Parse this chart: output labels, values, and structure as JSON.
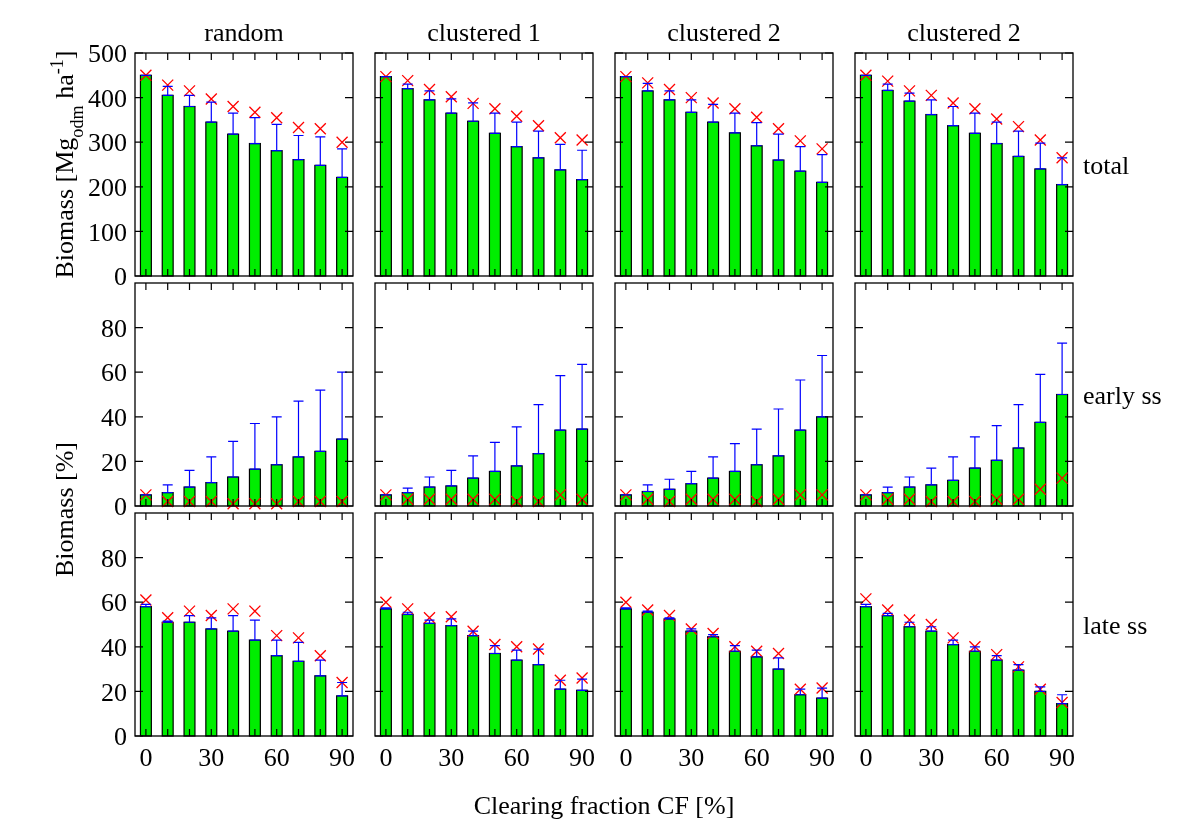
{
  "chart_data": [
    {
      "type": "bar",
      "title": "random",
      "ylabel": "Biomass [Mg$_{odm}$ ha$^{-1}$]",
      "x": [
        0,
        10,
        20,
        30,
        40,
        50,
        60,
        70,
        80,
        90
      ],
      "xlim": [
        -5,
        95
      ],
      "xticks": [
        0,
        {
          "value": 10,
          "label": null
        },
        {
          "value": 20,
          "label": null
        },
        30,
        {
          "value": 40,
          "label": null
        },
        {
          "value": 50,
          "label": null
        },
        60,
        {
          "value": 70,
          "label": null
        },
        {
          "value": 80,
          "label": null
        },
        90
      ],
      "ylim": [
        0,
        500
      ],
      "yticks": [
        0,
        100,
        200,
        300,
        400,
        500
      ],
      "tick_labels": "y",
      "marker": "cross",
      "series": [
        {
          "type": "bar",
          "color": "#00ee00",
          "values": [
            450,
            405,
            380,
            345,
            318,
            297,
            281,
            261,
            248,
            221
          ],
          "errors": [
            [
              450,
              450
            ],
            [
              405,
              425
            ],
            [
              380,
              405
            ],
            [
              345,
              390
            ],
            [
              318,
              365
            ],
            [
              297,
              355
            ],
            [
              281,
              340
            ],
            [
              261,
              315
            ],
            [
              248,
              312
            ],
            [
              221,
              285
            ]
          ]
        },
        {
          "type": "scatter",
          "color": "#ff0000",
          "values": [
            450,
            428,
            415,
            397,
            380,
            367,
            355,
            333,
            330,
            300
          ]
        }
      ]
    },
    {
      "type": "bar",
      "title": "clustered 1",
      "x": [
        0,
        10,
        20,
        30,
        40,
        50,
        60,
        70,
        80,
        90
      ],
      "xlim": [
        -5,
        95
      ],
      "xticks": [
        0,
        {
          "value": 10,
          "label": null
        },
        {
          "value": 20,
          "label": null
        },
        30,
        {
          "value": 40,
          "label": null
        },
        {
          "value": 50,
          "label": null
        },
        60,
        {
          "value": 70,
          "label": null
        },
        {
          "value": 80,
          "label": null
        },
        90
      ],
      "ylim": [
        0,
        500
      ],
      "yticks": [
        0,
        100,
        200,
        300,
        400,
        500
      ],
      "tick_labels": false,
      "marker": "cross",
      "series": [
        {
          "type": "bar",
          "color": "#00ee00",
          "values": [
            447,
            420,
            395,
            365,
            347,
            320,
            290,
            265,
            238,
            216
          ],
          "errors": [
            [
              447,
              447
            ],
            [
              420,
              430
            ],
            [
              395,
              415
            ],
            [
              365,
              397
            ],
            [
              347,
              388
            ],
            [
              320,
              365
            ],
            [
              290,
              345
            ],
            [
              265,
              325
            ],
            [
              238,
              295
            ],
            [
              216,
              282
            ]
          ]
        },
        {
          "type": "scatter",
          "color": "#ff0000",
          "values": [
            447,
            438,
            418,
            402,
            387,
            375,
            358,
            337,
            310,
            305
          ]
        }
      ]
    },
    {
      "type": "bar",
      "title": "clustered 2",
      "x": [
        0,
        10,
        20,
        30,
        40,
        50,
        60,
        70,
        80,
        90
      ],
      "xlim": [
        -5,
        95
      ],
      "xticks": [
        0,
        {
          "value": 10,
          "label": null
        },
        {
          "value": 20,
          "label": null
        },
        30,
        {
          "value": 40,
          "label": null
        },
        {
          "value": 50,
          "label": null
        },
        60,
        {
          "value": 70,
          "label": null
        },
        {
          "value": 80,
          "label": null
        },
        90
      ],
      "ylim": [
        0,
        500
      ],
      "yticks": [
        0,
        100,
        200,
        300,
        400,
        500
      ],
      "tick_labels": false,
      "marker": "cross",
      "series": [
        {
          "type": "bar",
          "color": "#00ee00",
          "values": [
            447,
            415,
            395,
            367,
            345,
            321,
            292,
            260,
            235,
            210
          ],
          "errors": [
            [
              447,
              447
            ],
            [
              415,
              432
            ],
            [
              395,
              415
            ],
            [
              367,
              395
            ],
            [
              345,
              385
            ],
            [
              321,
              365
            ],
            [
              292,
              344
            ],
            [
              260,
              318
            ],
            [
              235,
              290
            ],
            [
              210,
              272
            ]
          ]
        },
        {
          "type": "scatter",
          "color": "#ff0000",
          "values": [
            447,
            433,
            418,
            400,
            388,
            375,
            356,
            330,
            303,
            285
          ]
        }
      ]
    },
    {
      "type": "bar",
      "title": "clustered 2",
      "y2label": "total",
      "x": [
        0,
        10,
        20,
        30,
        40,
        50,
        60,
        70,
        80,
        90
      ],
      "xlim": [
        -5,
        95
      ],
      "xticks": [
        0,
        {
          "value": 10,
          "label": null
        },
        {
          "value": 20,
          "label": null
        },
        30,
        {
          "value": 40,
          "label": null
        },
        {
          "value": 50,
          "label": null
        },
        60,
        {
          "value": 70,
          "label": null
        },
        {
          "value": 80,
          "label": null
        },
        90
      ],
      "ylim": [
        0,
        500
      ],
      "yticks": [
        0,
        100,
        200,
        300,
        400,
        500
      ],
      "tick_labels": false,
      "marker": "cross",
      "series": [
        {
          "type": "bar",
          "color": "#00ee00",
          "values": [
            450,
            416,
            392,
            362,
            337,
            320,
            297,
            268,
            240,
            205
          ],
          "errors": [
            [
              450,
              450
            ],
            [
              416,
              430
            ],
            [
              392,
              410
            ],
            [
              362,
              395
            ],
            [
              337,
              380
            ],
            [
              320,
              365
            ],
            [
              297,
              345
            ],
            [
              268,
              325
            ],
            [
              240,
              298
            ],
            [
              205,
              265
            ]
          ]
        },
        {
          "type": "scatter",
          "color": "#ff0000",
          "values": [
            450,
            437,
            415,
            405,
            388,
            375,
            352,
            335,
            305,
            265
          ]
        }
      ]
    },
    {
      "type": "bar",
      "ylabel": "Biomass [%]",
      "x": [
        0,
        10,
        20,
        30,
        40,
        50,
        60,
        70,
        80,
        90
      ],
      "xlim": [
        -5,
        95
      ],
      "xticks": [
        0,
        {
          "value": 10,
          "label": null
        },
        {
          "value": 20,
          "label": null
        },
        30,
        {
          "value": 40,
          "label": null
        },
        {
          "value": 50,
          "label": null
        },
        60,
        {
          "value": 70,
          "label": null
        },
        {
          "value": 80,
          "label": null
        },
        90
      ],
      "ylim": [
        0,
        100
      ],
      "yticks": [
        0,
        20,
        40,
        60,
        80
      ],
      "tick_labels": "y",
      "marker": "cross",
      "series": [
        {
          "type": "bar",
          "color": "#00ee00",
          "values": [
            5,
            6,
            8.5,
            10.5,
            13,
            16.5,
            18.5,
            22,
            24.5,
            30
          ],
          "errors": [
            [
              5,
              5
            ],
            [
              6,
              9.5
            ],
            [
              8.5,
              16
            ],
            [
              10.5,
              22
            ],
            [
              13,
              29
            ],
            [
              16.5,
              37
            ],
            [
              18.5,
              40
            ],
            [
              22,
              47
            ],
            [
              24.5,
              52
            ],
            [
              30,
              60
            ]
          ]
        },
        {
          "type": "scatter",
          "color": "#ff0000",
          "values": [
            5,
            2,
            2,
            2,
            1,
            1,
            1,
            2,
            2,
            2
          ]
        }
      ]
    },
    {
      "type": "bar",
      "x": [
        0,
        10,
        20,
        30,
        40,
        50,
        60,
        70,
        80,
        90
      ],
      "xlim": [
        -5,
        95
      ],
      "xticks": [
        0,
        {
          "value": 10,
          "label": null
        },
        {
          "value": 20,
          "label": null
        },
        30,
        {
          "value": 40,
          "label": null
        },
        {
          "value": 50,
          "label": null
        },
        60,
        {
          "value": 70,
          "label": null
        },
        {
          "value": 80,
          "label": null
        },
        90
      ],
      "ylim": [
        0,
        100
      ],
      "yticks": [
        0,
        20,
        40,
        60,
        80
      ],
      "tick_labels": false,
      "marker": "cross",
      "series": [
        {
          "type": "bar",
          "color": "#00ee00",
          "values": [
            5,
            6,
            8.5,
            9,
            12.5,
            15.5,
            18,
            23.5,
            34,
            34.5
          ],
          "errors": [
            [
              5,
              5
            ],
            [
              6,
              8
            ],
            [
              8.5,
              13
            ],
            [
              9,
              16
            ],
            [
              12.5,
              22.5
            ],
            [
              15.5,
              28.5
            ],
            [
              18,
              35.5
            ],
            [
              23.5,
              45.5
            ],
            [
              34,
              58.5
            ],
            [
              34.5,
              63.5
            ]
          ]
        },
        {
          "type": "scatter",
          "color": "#ff0000",
          "values": [
            5,
            3,
            3,
            3,
            3,
            3,
            2,
            2,
            5,
            3
          ]
        }
      ]
    },
    {
      "type": "bar",
      "x": [
        0,
        10,
        20,
        30,
        40,
        50,
        60,
        70,
        80,
        90
      ],
      "xlim": [
        -5,
        95
      ],
      "xticks": [
        0,
        {
          "value": 10,
          "label": null
        },
        {
          "value": 20,
          "label": null
        },
        30,
        {
          "value": 40,
          "label": null
        },
        {
          "value": 50,
          "label": null
        },
        60,
        {
          "value": 70,
          "label": null
        },
        {
          "value": 80,
          "label": null
        },
        90
      ],
      "ylim": [
        0,
        100
      ],
      "yticks": [
        0,
        20,
        40,
        60,
        80
      ],
      "tick_labels": false,
      "marker": "cross",
      "series": [
        {
          "type": "bar",
          "color": "#00ee00",
          "values": [
            5,
            6.5,
            7.5,
            10,
            12.5,
            15.5,
            18.5,
            22.5,
            34,
            40
          ],
          "errors": [
            [
              5,
              5
            ],
            [
              6.5,
              9.5
            ],
            [
              7.5,
              12
            ],
            [
              10,
              15.5
            ],
            [
              12.5,
              22
            ],
            [
              15.5,
              28
            ],
            [
              18.5,
              34.5
            ],
            [
              22.5,
              43.5
            ],
            [
              34,
              56.5
            ],
            [
              40,
              67.5
            ]
          ]
        },
        {
          "type": "scatter",
          "color": "#ff0000",
          "values": [
            5,
            3,
            2,
            3,
            3,
            3,
            2,
            3,
            5,
            5
          ]
        }
      ]
    },
    {
      "type": "bar",
      "y2label": "early ss",
      "x": [
        0,
        10,
        20,
        30,
        40,
        50,
        60,
        70,
        80,
        90
      ],
      "xlim": [
        -5,
        95
      ],
      "xticks": [
        0,
        {
          "value": 10,
          "label": null
        },
        {
          "value": 20,
          "label": null
        },
        30,
        {
          "value": 40,
          "label": null
        },
        {
          "value": 50,
          "label": null
        },
        60,
        {
          "value": 70,
          "label": null
        },
        {
          "value": 80,
          "label": null
        },
        90
      ],
      "ylim": [
        0,
        100
      ],
      "yticks": [
        0,
        20,
        40,
        60,
        80
      ],
      "tick_labels": false,
      "marker": "cross",
      "series": [
        {
          "type": "bar",
          "color": "#00ee00",
          "values": [
            5,
            6,
            8.5,
            9.5,
            11.5,
            17,
            20.5,
            26,
            37.5,
            50
          ],
          "errors": [
            [
              5,
              5
            ],
            [
              6,
              8.5
            ],
            [
              8.5,
              13
            ],
            [
              9.5,
              17
            ],
            [
              11.5,
              22
            ],
            [
              17,
              31
            ],
            [
              20.5,
              36
            ],
            [
              26,
              45.5
            ],
            [
              37.5,
              59
            ],
            [
              50,
              73
            ]
          ]
        },
        {
          "type": "scatter",
          "color": "#ff0000",
          "values": [
            5,
            3,
            3,
            2,
            2,
            2,
            3,
            3,
            7.5,
            12.5
          ]
        }
      ]
    },
    {
      "type": "bar",
      "xlabel": "Clearing fraction CF [%]",
      "x": [
        0,
        10,
        20,
        30,
        40,
        50,
        60,
        70,
        80,
        90
      ],
      "xlim": [
        -5,
        95
      ],
      "xticks": [
        0,
        {
          "value": 10,
          "label": null
        },
        {
          "value": 20,
          "label": null
        },
        30,
        {
          "value": 40,
          "label": null
        },
        {
          "value": 50,
          "label": null
        },
        60,
        {
          "value": 70,
          "label": null
        },
        {
          "value": 80,
          "label": null
        },
        90
      ],
      "ylim": [
        0,
        100
      ],
      "yticks": [
        0,
        20,
        40,
        60,
        80
      ],
      "marker": "cross",
      "series": [
        {
          "type": "bar",
          "color": "#00ee00",
          "values": [
            58,
            51,
            51,
            48,
            47,
            43,
            36,
            33.5,
            27,
            18
          ],
          "errors": [
            [
              58,
              59
            ],
            [
              51,
              51.5
            ],
            [
              51,
              54
            ],
            [
              48,
              53
            ],
            [
              47,
              54
            ],
            [
              43,
              52
            ],
            [
              36,
              43
            ],
            [
              33.5,
              42
            ],
            [
              27,
              34
            ],
            [
              18,
              24
            ]
          ]
        },
        {
          "type": "scatter",
          "color": "#ff0000",
          "values": [
            61,
            53,
            56,
            54,
            57,
            56,
            45,
            44,
            36,
            24
          ]
        }
      ]
    },
    {
      "type": "bar",
      "x": [
        0,
        10,
        20,
        30,
        40,
        50,
        60,
        70,
        80,
        90
      ],
      "xlim": [
        -5,
        95
      ],
      "xticks": [
        0,
        {
          "value": 10,
          "label": null
        },
        {
          "value": 20,
          "label": null
        },
        30,
        {
          "value": 40,
          "label": null
        },
        {
          "value": 50,
          "label": null
        },
        60,
        {
          "value": 70,
          "label": null
        },
        {
          "value": 80,
          "label": null
        },
        90
      ],
      "ylim": [
        0,
        100
      ],
      "yticks": [
        0,
        20,
        40,
        60,
        80
      ],
      "tick_labels": "x",
      "marker": "cross",
      "series": [
        {
          "type": "bar",
          "color": "#00ee00",
          "values": [
            57,
            54.5,
            50.5,
            49.5,
            45,
            37,
            34,
            32,
            21,
            20.5
          ],
          "errors": [
            [
              57,
              57.5
            ],
            [
              54.5,
              55.5
            ],
            [
              50.5,
              52
            ],
            [
              49.5,
              52.5
            ],
            [
              45,
              47
            ],
            [
              37,
              40.5
            ],
            [
              34,
              38.5
            ],
            [
              32,
              39
            ],
            [
              21,
              25
            ],
            [
              20.5,
              25.5
            ]
          ]
        },
        {
          "type": "scatter",
          "color": "#ff0000",
          "values": [
            60,
            57,
            53,
            53.5,
            47,
            41,
            40,
            39,
            25,
            26
          ]
        }
      ]
    },
    {
      "type": "bar",
      "x": [
        0,
        10,
        20,
        30,
        40,
        50,
        60,
        70,
        80,
        90
      ],
      "xlim": [
        -5,
        95
      ],
      "xticks": [
        0,
        {
          "value": 10,
          "label": null
        },
        {
          "value": 20,
          "label": null
        },
        30,
        {
          "value": 40,
          "label": null
        },
        {
          "value": 50,
          "label": null
        },
        60,
        {
          "value": 70,
          "label": null
        },
        {
          "value": 80,
          "label": null
        },
        90
      ],
      "ylim": [
        0,
        100
      ],
      "yticks": [
        0,
        20,
        40,
        60,
        80
      ],
      "tick_labels": "x",
      "marker": "cross",
      "series": [
        {
          "type": "bar",
          "color": "#00ee00",
          "values": [
            57,
            55.5,
            52.5,
            47,
            44.5,
            38,
            35.5,
            30,
            18.5,
            17
          ],
          "errors": [
            [
              57,
              57.5
            ],
            [
              55.5,
              56
            ],
            [
              52.5,
              53
            ],
            [
              47,
              48
            ],
            [
              44.5,
              45.5
            ],
            [
              38,
              40.5
            ],
            [
              35.5,
              38.5
            ],
            [
              30,
              35
            ],
            [
              18.5,
              21
            ],
            [
              17,
              21.5
            ]
          ]
        },
        {
          "type": "scatter",
          "color": "#ff0000",
          "values": [
            60,
            56.5,
            54,
            48,
            46,
            40,
            38,
            37,
            21,
            21.5
          ]
        }
      ]
    },
    {
      "type": "bar",
      "y2label": "late ss",
      "x": [
        0,
        10,
        20,
        30,
        40,
        50,
        60,
        70,
        80,
        90
      ],
      "xlim": [
        -5,
        95
      ],
      "xticks": [
        0,
        {
          "value": 10,
          "label": null
        },
        {
          "value": 20,
          "label": null
        },
        30,
        {
          "value": 40,
          "label": null
        },
        {
          "value": 50,
          "label": null
        },
        60,
        {
          "value": 70,
          "label": null
        },
        {
          "value": 80,
          "label": null
        },
        90
      ],
      "ylim": [
        0,
        100
      ],
      "yticks": [
        0,
        20,
        40,
        60,
        80
      ],
      "tick_labels": "x",
      "marker": "cross",
      "series": [
        {
          "type": "bar",
          "color": "#00ee00",
          "values": [
            58,
            54,
            49,
            47,
            41,
            38,
            34,
            29.5,
            20,
            14.5
          ],
          "errors": [
            [
              58,
              59
            ],
            [
              54,
              55
            ],
            [
              49,
              51
            ],
            [
              47,
              49
            ],
            [
              41,
              43
            ],
            [
              38,
              40
            ],
            [
              34,
              36
            ],
            [
              29.5,
              32
            ],
            [
              20,
              22
            ],
            [
              14.5,
              18.5
            ]
          ]
        },
        {
          "type": "scatter",
          "color": "#ff0000",
          "values": [
            61.5,
            56.5,
            52,
            50,
            44,
            40,
            36.5,
            31,
            21,
            15
          ]
        }
      ]
    }
  ]
}
